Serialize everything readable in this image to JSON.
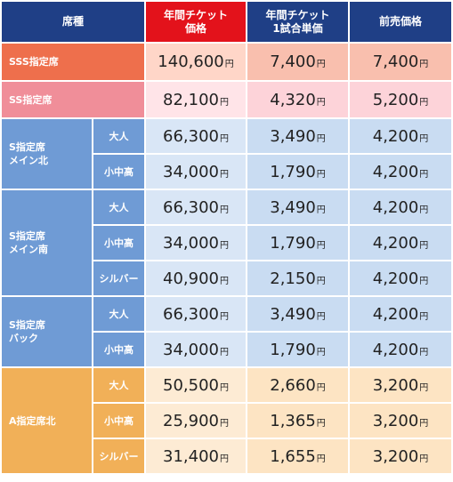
{
  "header": {
    "seat": "席種",
    "annual_line1": "年間チケット",
    "annual_line2": "価格",
    "pergame_line1": "年間チケット",
    "pergame_line2": "1試合単価",
    "presale": "前売価格"
  },
  "yen": "円",
  "rows": {
    "sss": {
      "seat": "SSS指定席",
      "annual": "140,600",
      "pergame": "7,400",
      "presale": "7,400"
    },
    "ss": {
      "seat": "SS指定席",
      "annual": "82,100",
      "pergame": "4,320",
      "presale": "5,200"
    },
    "s_main_north": {
      "seat_line1": "S指定席",
      "seat_line2": "メイン北",
      "adult": {
        "label": "大人",
        "annual": "66,300",
        "pergame": "3,490",
        "presale": "4,200"
      },
      "youth": {
        "label": "小中高",
        "annual": "34,000",
        "pergame": "1,790",
        "presale": "4,200"
      }
    },
    "s_main_south": {
      "seat_line1": "S指定席",
      "seat_line2": "メイン南",
      "adult": {
        "label": "大人",
        "annual": "66,300",
        "pergame": "3,490",
        "presale": "4,200"
      },
      "youth": {
        "label": "小中高",
        "annual": "34,000",
        "pergame": "1,790",
        "presale": "4,200"
      },
      "senior": {
        "label": "シルバー",
        "annual": "40,900",
        "pergame": "2,150",
        "presale": "4,200"
      }
    },
    "s_back": {
      "seat_line1": "S指定席",
      "seat_line2": "バック",
      "adult": {
        "label": "大人",
        "annual": "66,300",
        "pergame": "3,490",
        "presale": "4,200"
      },
      "youth": {
        "label": "小中高",
        "annual": "34,000",
        "pergame": "1,790",
        "presale": "4,200"
      }
    },
    "a_north": {
      "seat": "A指定席北",
      "adult": {
        "label": "大人",
        "annual": "50,500",
        "pergame": "2,660",
        "presale": "3,200"
      },
      "youth": {
        "label": "小中高",
        "annual": "25,900",
        "pergame": "1,365",
        "presale": "3,200"
      },
      "senior": {
        "label": "シルバー",
        "annual": "31,400",
        "pergame": "1,655",
        "presale": "3,200"
      }
    }
  }
}
